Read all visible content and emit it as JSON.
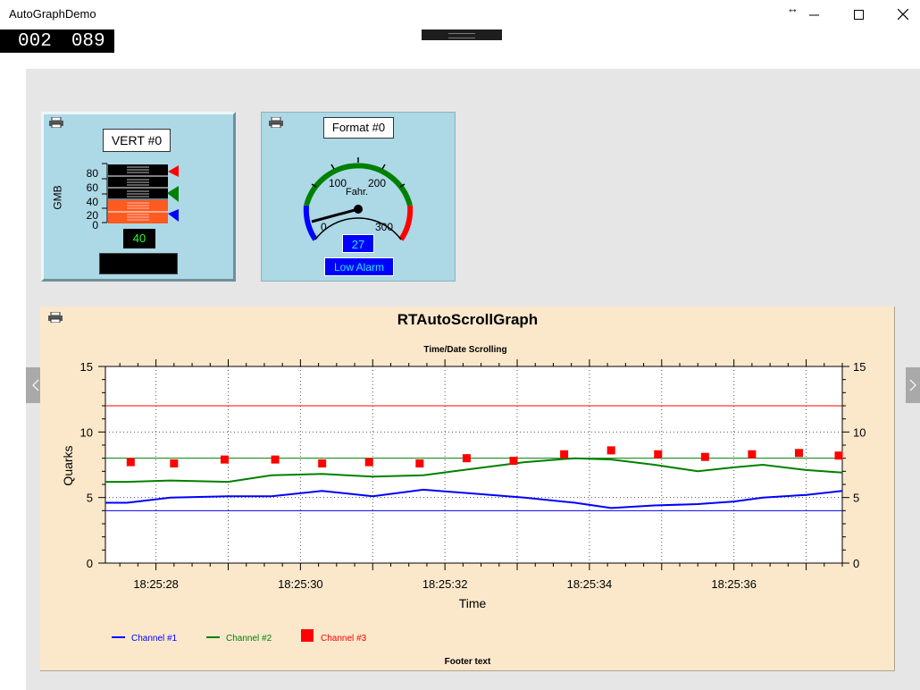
{
  "window": {
    "title": "AutoGraphDemo",
    "counter_left": "002",
    "counter_right": "089"
  },
  "vert_panel": {
    "label": "VERT #0",
    "axis_label": "GMB",
    "ticks": [
      "80",
      "60",
      "40",
      "20",
      "0"
    ],
    "value": "40",
    "colors": {
      "fill_low": "#ff5a1f",
      "marker_red": "#ff0000",
      "marker_green": "#008000",
      "marker_blue": "#0000ff"
    }
  },
  "gauge_panel": {
    "label": "Format #0",
    "unit": "Fahr.",
    "ticks": [
      "0",
      "100",
      "200",
      "300"
    ],
    "value": "27",
    "alarm": "Low Alarm",
    "colors": {
      "low": "#0000ff",
      "normal": "#008000",
      "high": "#ff0000"
    }
  },
  "graph": {
    "title": "RTAutoScrollGraph",
    "footer": "Footer text",
    "legend": [
      {
        "label": "Channel #1",
        "color": "#0000ff",
        "kind": "line"
      },
      {
        "label": "Channel #2",
        "color": "#008000",
        "kind": "line"
      },
      {
        "label": "Channel #3",
        "color": "#ff0000",
        "kind": "square"
      }
    ]
  },
  "chart_data": {
    "type": "line",
    "title": "Time/Date Scrolling",
    "xlabel": "Time",
    "ylabel": "Quarks",
    "ylim": [
      0,
      15
    ],
    "xlim": [
      "18:25:27.3",
      "18:25:37.5"
    ],
    "x_ticks": [
      "18:25:28",
      "18:25:30",
      "18:25:32",
      "18:25:34",
      "18:25:36"
    ],
    "y_ticks": [
      "0",
      "5",
      "10",
      "15"
    ],
    "grid": true,
    "legend_position": "bottom-left",
    "reference_lines": [
      {
        "y": 12,
        "color": "#ff0000"
      },
      {
        "y": 8,
        "color": "#008000"
      },
      {
        "y": 4,
        "color": "#0000ff"
      }
    ],
    "series": [
      {
        "name": "Channel #1",
        "color": "#0000ff",
        "style": "line",
        "x": [
          27.3,
          27.6,
          28.2,
          29.0,
          29.6,
          30.3,
          31.0,
          31.7,
          32.4,
          33.1,
          33.8,
          34.3,
          34.9,
          35.5,
          36.0,
          36.4,
          37.0,
          37.5
        ],
        "y": [
          4.6,
          4.6,
          5.0,
          5.1,
          5.1,
          5.5,
          5.1,
          5.6,
          5.3,
          5.0,
          4.6,
          4.2,
          4.4,
          4.5,
          4.7,
          5.0,
          5.2,
          5.5
        ]
      },
      {
        "name": "Channel #2",
        "color": "#008000",
        "style": "line",
        "x": [
          27.3,
          27.6,
          28.2,
          29.0,
          29.6,
          30.3,
          31.0,
          31.7,
          32.4,
          33.1,
          33.8,
          34.3,
          34.9,
          35.5,
          36.0,
          36.4,
          37.0,
          37.5
        ],
        "y": [
          6.2,
          6.2,
          6.3,
          6.2,
          6.7,
          6.8,
          6.6,
          6.7,
          7.2,
          7.7,
          8.0,
          7.9,
          7.5,
          7.0,
          7.3,
          7.5,
          7.1,
          6.9
        ]
      },
      {
        "name": "Channel #3",
        "color": "#ff0000",
        "style": "square",
        "x": [
          27.65,
          28.25,
          28.95,
          29.65,
          30.3,
          30.95,
          31.65,
          32.3,
          32.95,
          33.65,
          34.3,
          34.95,
          35.6,
          36.25,
          36.9,
          37.5
        ],
        "y": [
          7.7,
          7.6,
          7.9,
          7.9,
          7.6,
          7.7,
          7.6,
          8.0,
          7.8,
          8.3,
          8.6,
          8.3,
          8.1,
          8.3,
          8.4,
          8.2
        ]
      }
    ]
  }
}
